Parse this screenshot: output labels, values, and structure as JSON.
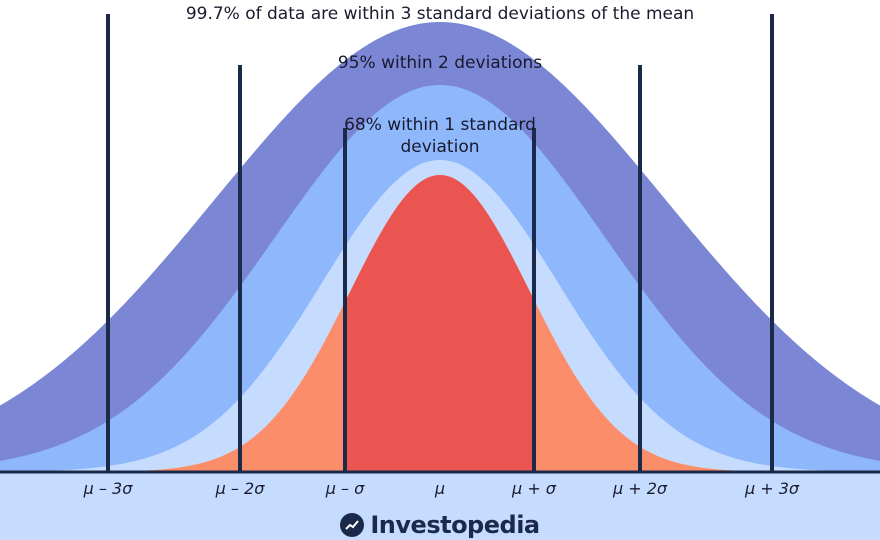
{
  "labels": {
    "three_sd": "99.7% of data are within 3 standard deviations of the mean",
    "two_sd": "95% within 2 deviations",
    "one_sd": "68% within 1 standard deviation"
  },
  "ticks": [
    "μ – 3σ",
    "μ – 2σ",
    "μ – σ",
    "μ",
    "μ + σ",
    "μ + 2σ",
    "μ + 3σ"
  ],
  "brand": "Investopedia",
  "colors": {
    "outer_band": "#7b87d4",
    "middle_band": "#8fb7fb",
    "inner_band": "#c5dcfe",
    "center_peak": "#ea5451",
    "orange_tail": "#fc8d6b",
    "yellow_tail": "#fdbe6f",
    "axis_strip": "#c5dcfe",
    "lines": "#1b2a4a"
  }
}
